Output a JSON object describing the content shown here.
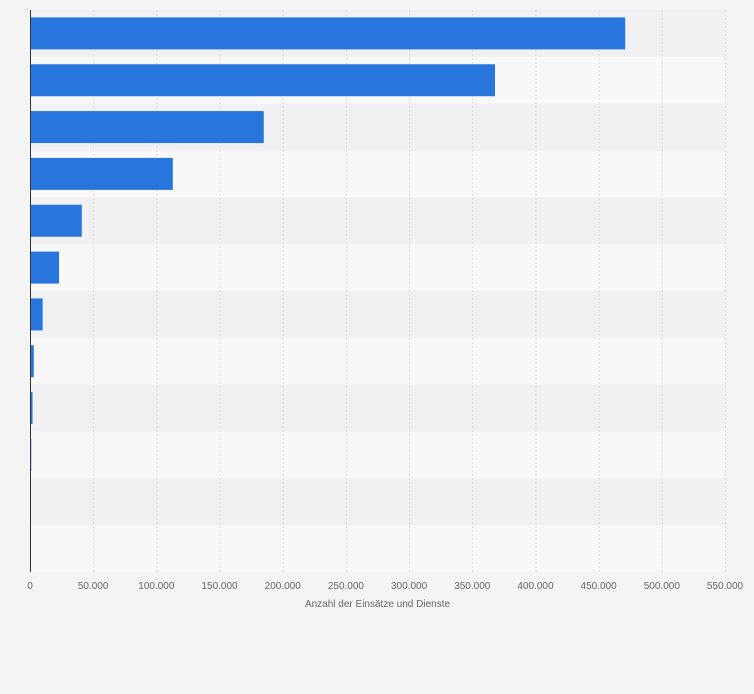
{
  "chart_data": {
    "type": "bar",
    "orientation": "horizontal",
    "title": "",
    "xlabel": "Anzahl der Einsätze und Dienste",
    "ylabel": "",
    "xlim": [
      0,
      550000
    ],
    "xticks": [
      0,
      50000,
      100000,
      150000,
      200000,
      250000,
      300000,
      350000,
      400000,
      450000,
      500000,
      550000
    ],
    "xtick_labels": [
      "0",
      "50.000",
      "100.000",
      "150.000",
      "200.000",
      "250.000",
      "300.000",
      "350.000",
      "400.000",
      "450.000",
      "500.000",
      "550.000"
    ],
    "categories": [
      "",
      "",
      "",
      "",
      "",
      "",
      "",
      "",
      "",
      "",
      "",
      ""
    ],
    "values": [
      471000,
      368000,
      185000,
      113000,
      41000,
      23000,
      10000,
      3000,
      2000,
      1000,
      0,
      0
    ],
    "bar_color": "#2876dd",
    "grid": true,
    "legend": "none"
  },
  "colors": {
    "background": "#f4f4f5",
    "band_dark": "#f1f1f3",
    "band_light": "#f8f8f9",
    "gridline": "#dcdcdf",
    "axis": "#333333",
    "tick_text": "#666666"
  }
}
